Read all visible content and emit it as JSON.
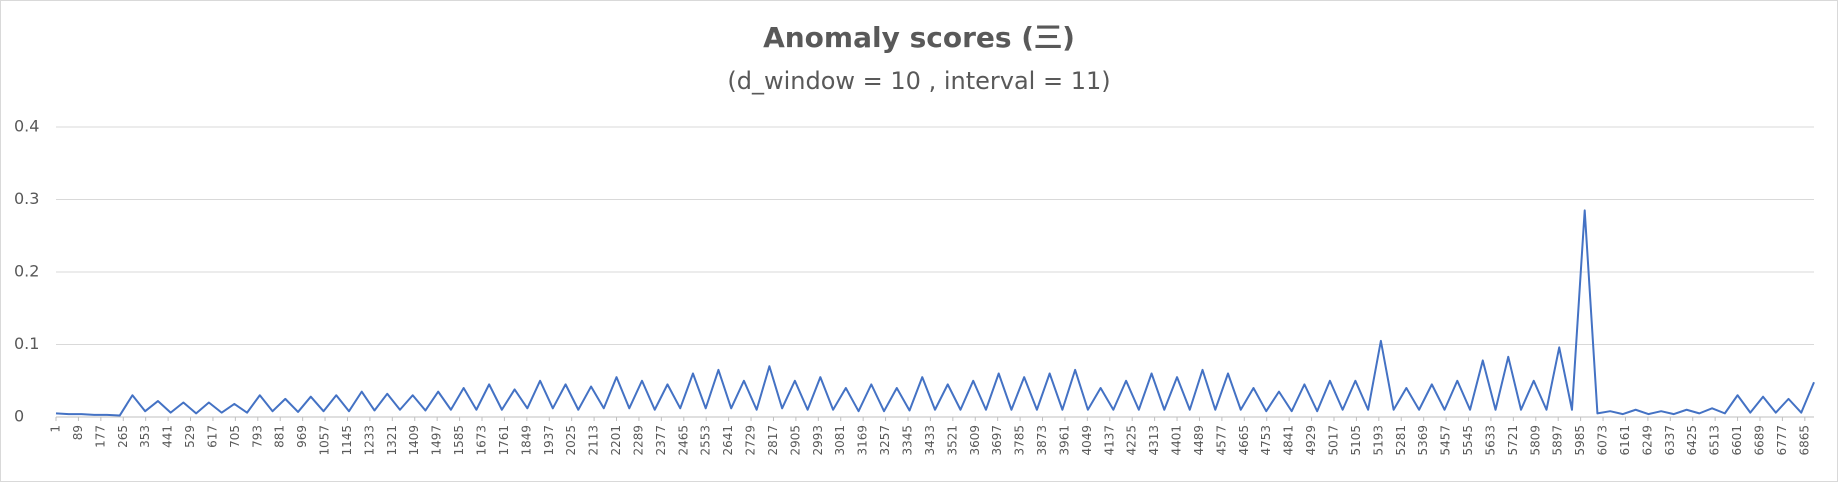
{
  "chart_data": {
    "type": "line",
    "title": "Anomaly scores (三)",
    "subtitle": "(d_window = 10 , interval = 11)",
    "x": [
      1,
      51,
      101,
      151,
      201,
      251,
      301,
      351,
      401,
      451,
      501,
      551,
      601,
      651,
      701,
      751,
      801,
      851,
      901,
      951,
      1001,
      1051,
      1101,
      1151,
      1201,
      1251,
      1301,
      1351,
      1401,
      1451,
      1501,
      1551,
      1601,
      1651,
      1701,
      1751,
      1801,
      1851,
      1901,
      1951,
      2001,
      2051,
      2101,
      2151,
      2201,
      2251,
      2301,
      2351,
      2401,
      2451,
      2501,
      2551,
      2601,
      2651,
      2701,
      2751,
      2801,
      2851,
      2901,
      2951,
      3001,
      3051,
      3101,
      3151,
      3201,
      3251,
      3301,
      3351,
      3401,
      3451,
      3501,
      3551,
      3601,
      3651,
      3701,
      3751,
      3801,
      3851,
      3901,
      3951,
      4001,
      4051,
      4101,
      4151,
      4201,
      4251,
      4301,
      4351,
      4401,
      4451,
      4501,
      4551,
      4601,
      4651,
      4701,
      4751,
      4801,
      4851,
      4901,
      4951,
      5001,
      5051,
      5101,
      5151,
      5201,
      5251,
      5301,
      5351,
      5401,
      5451,
      5501,
      5551,
      5601,
      5651,
      5701,
      5751,
      5801,
      5851,
      5901,
      5951,
      6001,
      6051,
      6101,
      6151,
      6201,
      6251,
      6301,
      6351,
      6401,
      6451,
      6501,
      6551,
      6601,
      6651,
      6701,
      6751,
      6801,
      6851,
      6901
    ],
    "series": [
      {
        "name": "Anomaly score",
        "color": "#4472c4",
        "values": [
          0.005,
          0.004,
          0.004,
          0.003,
          0.003,
          0.002,
          0.03,
          0.008,
          0.022,
          0.006,
          0.02,
          0.005,
          0.02,
          0.006,
          0.018,
          0.006,
          0.03,
          0.008,
          0.025,
          0.007,
          0.028,
          0.008,
          0.03,
          0.008,
          0.035,
          0.009,
          0.032,
          0.01,
          0.03,
          0.009,
          0.035,
          0.01,
          0.04,
          0.01,
          0.045,
          0.01,
          0.038,
          0.012,
          0.05,
          0.012,
          0.045,
          0.01,
          0.042,
          0.012,
          0.055,
          0.012,
          0.05,
          0.01,
          0.045,
          0.012,
          0.06,
          0.012,
          0.065,
          0.012,
          0.05,
          0.01,
          0.07,
          0.012,
          0.05,
          0.01,
          0.055,
          0.01,
          0.04,
          0.008,
          0.045,
          0.008,
          0.04,
          0.009,
          0.055,
          0.01,
          0.045,
          0.01,
          0.05,
          0.01,
          0.06,
          0.01,
          0.055,
          0.01,
          0.06,
          0.01,
          0.065,
          0.01,
          0.04,
          0.01,
          0.05,
          0.01,
          0.06,
          0.01,
          0.055,
          0.01,
          0.065,
          0.01,
          0.06,
          0.01,
          0.04,
          0.008,
          0.035,
          0.008,
          0.045,
          0.008,
          0.05,
          0.01,
          0.05,
          0.01,
          0.105,
          0.01,
          0.04,
          0.01,
          0.045,
          0.01,
          0.05,
          0.01,
          0.078,
          0.01,
          0.083,
          0.01,
          0.05,
          0.01,
          0.096,
          0.01,
          0.285,
          0.005,
          0.008,
          0.004,
          0.01,
          0.004,
          0.008,
          0.004,
          0.01,
          0.005,
          0.012,
          0.005,
          0.03,
          0.006,
          0.028,
          0.006,
          0.025,
          0.006,
          0.048
        ]
      }
    ],
    "xlim": [
      1,
      6901
    ],
    "xticks": [
      1,
      89,
      177,
      265,
      353,
      441,
      529,
      617,
      705,
      793,
      881,
      969,
      1057,
      1145,
      1233,
      1321,
      1409,
      1497,
      1585,
      1673,
      1761,
      1849,
      1937,
      2025,
      2113,
      2201,
      2289,
      2377,
      2465,
      2553,
      2641,
      2729,
      2817,
      2905,
      2993,
      3081,
      3169,
      3257,
      3345,
      3433,
      3521,
      3609,
      3697,
      3785,
      3873,
      3961,
      4049,
      4137,
      4225,
      4313,
      4401,
      4489,
      4577,
      4665,
      4753,
      4841,
      4929,
      5017,
      5105,
      5193,
      5281,
      5369,
      5457,
      5545,
      5633,
      5721,
      5809,
      5897,
      5985,
      6073,
      6161,
      6249,
      6337,
      6425,
      6513,
      6601,
      6689,
      6777,
      6865
    ],
    "ylim": [
      0,
      0.4
    ],
    "yticks": [
      0,
      0.1,
      0.2,
      0.3,
      0.4
    ],
    "grid": true
  }
}
